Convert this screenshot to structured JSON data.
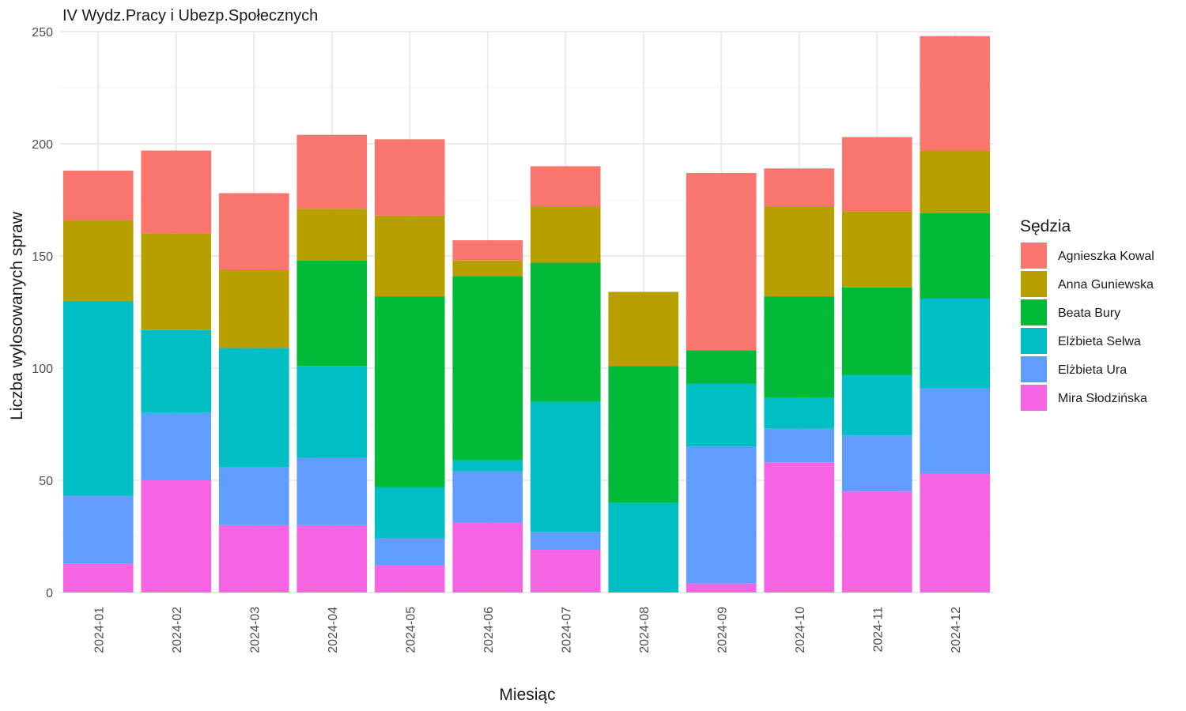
{
  "chart_data": {
    "type": "bar",
    "stacked": true,
    "title": "IV Wydz.Pracy i Ubezp.Społecznych",
    "xlabel": "Miesiąc",
    "ylabel": "Liczba wylosowanych spraw",
    "ylim": [
      0,
      250
    ],
    "yticks": [
      0,
      50,
      100,
      150,
      200,
      250
    ],
    "grid": true,
    "legend_position": "right",
    "legend_title": "Sędzia",
    "categories": [
      "2024-01",
      "2024-02",
      "2024-03",
      "2024-04",
      "2024-05",
      "2024-06",
      "2024-07",
      "2024-08",
      "2024-09",
      "2024-10",
      "2024-11",
      "2024-12"
    ],
    "series": [
      {
        "name": "Agnieszka Kowal",
        "color": "#F8766D",
        "values": [
          22,
          37,
          34,
          33,
          34,
          9,
          18,
          0,
          79,
          17,
          33,
          51
        ]
      },
      {
        "name": "Anna Guniewska",
        "color": "#B79F00",
        "values": [
          36,
          43,
          35,
          23,
          36,
          7,
          25,
          33,
          0,
          40,
          34,
          28
        ]
      },
      {
        "name": "Beata Bury",
        "color": "#00BA38",
        "values": [
          0,
          0,
          0,
          47,
          85,
          82,
          62,
          61,
          15,
          45,
          39,
          38
        ]
      },
      {
        "name": "Elżbieta Selwa",
        "color": "#00BFC4",
        "values": [
          87,
          37,
          53,
          41,
          23,
          5,
          58,
          40,
          28,
          14,
          27,
          40
        ]
      },
      {
        "name": "Elżbieta Ura",
        "color": "#619CFF",
        "values": [
          30,
          30,
          26,
          30,
          12,
          23,
          8,
          0,
          61,
          15,
          25,
          38
        ]
      },
      {
        "name": "Mira Słodzińska",
        "color": "#F564E3",
        "values": [
          13,
          50,
          30,
          30,
          12,
          31,
          19,
          0,
          4,
          58,
          45,
          53
        ]
      }
    ]
  }
}
